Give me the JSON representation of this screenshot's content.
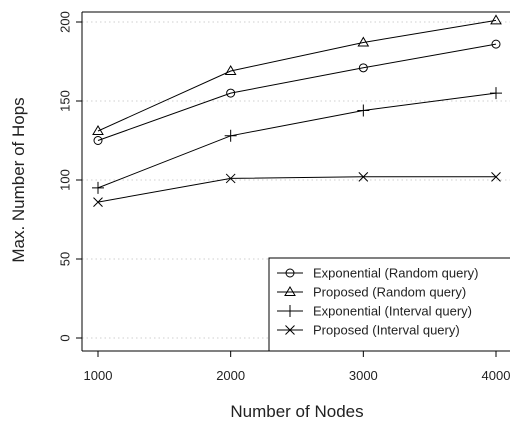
{
  "chart_data": {
    "type": "line",
    "title": "",
    "xlabel": "Number of Nodes",
    "ylabel": "Max. Number of Hops",
    "x": [
      1000,
      2000,
      3000,
      4000
    ],
    "x_ticks": [
      "1000",
      "2000",
      "3000",
      "4000"
    ],
    "y_ticks": [
      "0",
      "50",
      "100",
      "150",
      "200"
    ],
    "xlim": [
      1000,
      4000
    ],
    "ylim": [
      0,
      200
    ],
    "grid": "horizontal dotted",
    "legend_position": "bottom-right",
    "series": [
      {
        "name": "Exponential (Random query)",
        "marker": "circle",
        "values": [
          125,
          155,
          171,
          186
        ]
      },
      {
        "name": "Proposed (Random query)",
        "marker": "triangle",
        "values": [
          131,
          169,
          187,
          201
        ]
      },
      {
        "name": "Exponential (Interval query)",
        "marker": "plus",
        "values": [
          95,
          128,
          144,
          155
        ]
      },
      {
        "name": "Proposed (Interval query)",
        "marker": "cross",
        "values": [
          86,
          101,
          102,
          102
        ]
      }
    ]
  }
}
